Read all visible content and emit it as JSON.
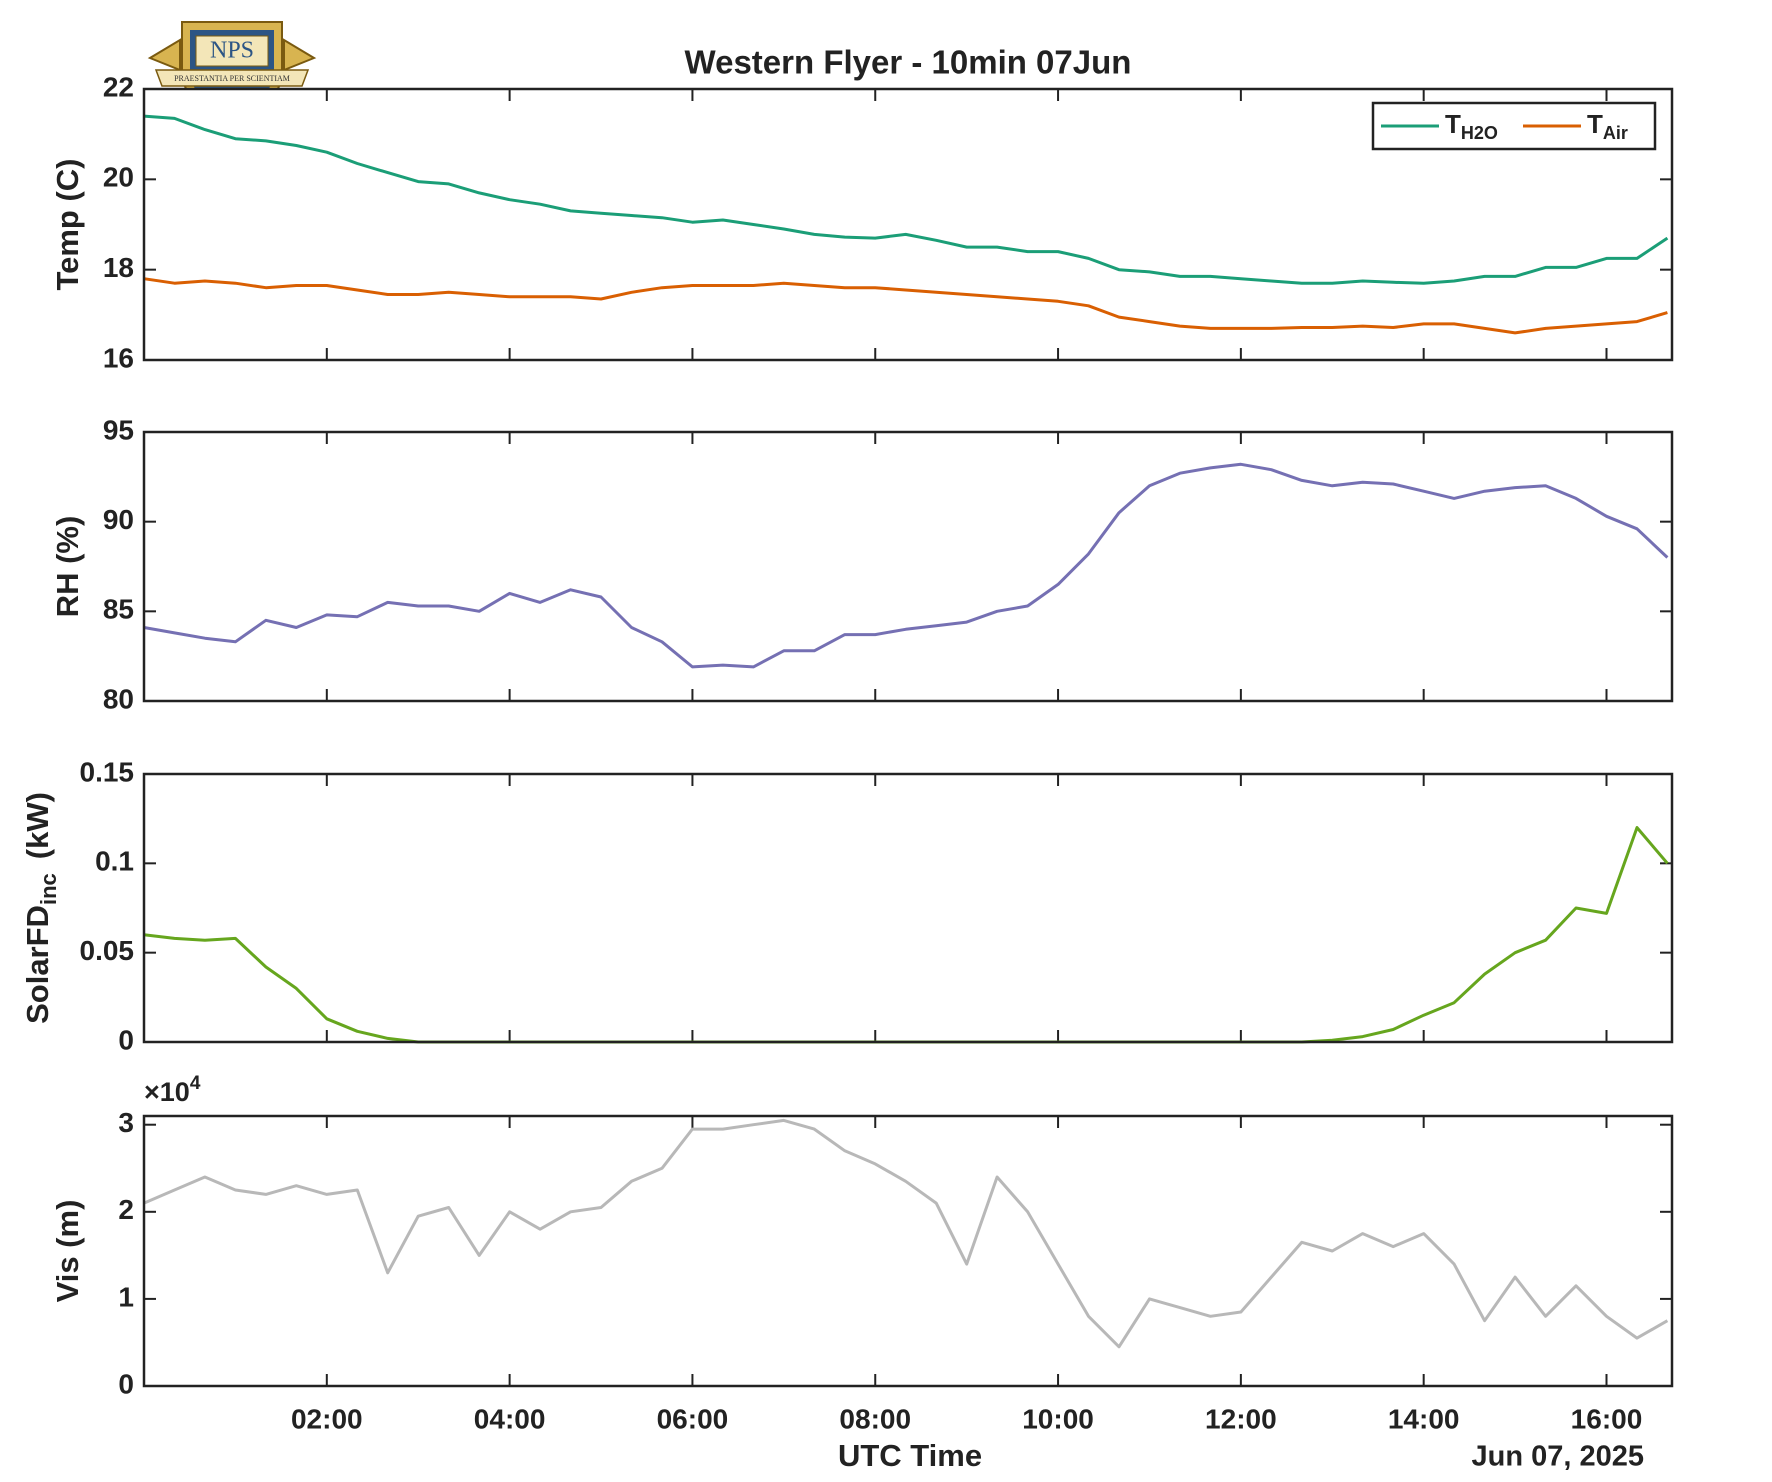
{
  "logo": {
    "text": "NPS",
    "motto": "PRAESTANTIA PER SCIENTIAM"
  },
  "chart_data": [
    {
      "type": "line",
      "title": "Western Flyer - 10min 07Jun",
      "ylabel": "Temp (C)",
      "legend": "upper right",
      "x": [
        "00:00",
        "00:20",
        "00:40",
        "01:00",
        "01:20",
        "01:40",
        "02:00",
        "02:20",
        "02:40",
        "03:00",
        "03:20",
        "03:40",
        "04:00",
        "04:20",
        "04:40",
        "05:00",
        "05:20",
        "05:40",
        "06:00",
        "06:20",
        "06:40",
        "07:00",
        "07:20",
        "07:40",
        "08:00",
        "08:20",
        "08:40",
        "09:00",
        "09:20",
        "09:40",
        "10:00",
        "10:20",
        "10:40",
        "11:00",
        "11:20",
        "11:40",
        "12:00",
        "12:20",
        "12:40",
        "13:00",
        "13:20",
        "13:40",
        "14:00",
        "14:20",
        "14:40",
        "15:00",
        "15:20",
        "15:40",
        "16:00",
        "16:20",
        "16:40"
      ],
      "xlim": [
        "00:00",
        "16:43"
      ],
      "ylim": [
        16,
        22
      ],
      "yticks": [
        16,
        18,
        20,
        22
      ],
      "series": [
        {
          "name": "T",
          "name_subscript": "H2O",
          "color": "#1b9e77",
          "values": [
            21.4,
            21.35,
            21.1,
            20.9,
            20.85,
            20.75,
            20.6,
            20.35,
            20.15,
            19.95,
            19.9,
            19.7,
            19.55,
            19.45,
            19.3,
            19.25,
            19.2,
            19.15,
            19.05,
            19.1,
            19.0,
            18.9,
            18.78,
            18.72,
            18.7,
            18.78,
            18.65,
            18.5,
            18.5,
            18.4,
            18.4,
            18.25,
            18.0,
            17.95,
            17.85,
            17.85,
            17.8,
            17.75,
            17.7,
            17.7,
            17.75,
            17.72,
            17.7,
            17.75,
            17.85,
            17.85,
            18.05,
            18.05,
            18.25,
            18.25,
            18.7
          ]
        },
        {
          "name": "T",
          "name_subscript": "Air",
          "color": "#d95f02",
          "values": [
            17.8,
            17.7,
            17.75,
            17.7,
            17.6,
            17.65,
            17.65,
            17.55,
            17.45,
            17.45,
            17.5,
            17.45,
            17.4,
            17.4,
            17.4,
            17.35,
            17.5,
            17.6,
            17.65,
            17.65,
            17.65,
            17.7,
            17.65,
            17.6,
            17.6,
            17.55,
            17.5,
            17.45,
            17.4,
            17.35,
            17.3,
            17.2,
            16.95,
            16.85,
            16.75,
            16.7,
            16.7,
            16.7,
            16.72,
            16.72,
            16.75,
            16.72,
            16.8,
            16.8,
            16.7,
            16.6,
            16.7,
            16.75,
            16.8,
            16.85,
            17.05
          ]
        }
      ]
    },
    {
      "type": "line",
      "ylabel": "RH (%)",
      "x": [
        "00:00",
        "00:20",
        "00:40",
        "01:00",
        "01:20",
        "01:40",
        "02:00",
        "02:20",
        "02:40",
        "03:00",
        "03:20",
        "03:40",
        "04:00",
        "04:20",
        "04:40",
        "05:00",
        "05:20",
        "05:40",
        "06:00",
        "06:20",
        "06:40",
        "07:00",
        "07:20",
        "07:40",
        "08:00",
        "08:20",
        "08:40",
        "09:00",
        "09:20",
        "09:40",
        "10:00",
        "10:20",
        "10:40",
        "11:00",
        "11:20",
        "11:40",
        "12:00",
        "12:20",
        "12:40",
        "13:00",
        "13:20",
        "13:40",
        "14:00",
        "14:20",
        "14:40",
        "15:00",
        "15:20",
        "15:40",
        "16:00",
        "16:20",
        "16:40"
      ],
      "xlim": [
        "00:00",
        "16:43"
      ],
      "ylim": [
        80,
        95
      ],
      "yticks": [
        80,
        85,
        90,
        95
      ],
      "series": [
        {
          "color": "#7570b3",
          "values": [
            84.1,
            83.8,
            83.5,
            83.3,
            84.5,
            84.1,
            84.8,
            84.7,
            85.5,
            85.3,
            85.3,
            85.0,
            86.0,
            85.5,
            86.2,
            85.8,
            84.1,
            83.3,
            81.9,
            82.0,
            81.9,
            82.8,
            82.8,
            83.7,
            83.7,
            84.0,
            84.2,
            84.4,
            85.0,
            85.3,
            86.5,
            88.2,
            90.5,
            92.0,
            92.7,
            93.0,
            93.2,
            92.9,
            92.3,
            92.0,
            92.2,
            92.1,
            91.7,
            91.3,
            91.7,
            91.9,
            92.0,
            91.3,
            90.3,
            89.6,
            88.0
          ]
        }
      ]
    },
    {
      "type": "line",
      "ylabel": "SolarFD",
      "ylabel_subscript": "inc",
      "ylabel_suffix": "(kW)",
      "x": [
        "00:00",
        "00:20",
        "00:40",
        "01:00",
        "01:20",
        "01:40",
        "02:00",
        "02:20",
        "02:40",
        "03:00",
        "03:20",
        "03:40",
        "04:00",
        "04:20",
        "04:40",
        "05:00",
        "05:20",
        "05:40",
        "06:00",
        "06:20",
        "06:40",
        "07:00",
        "07:20",
        "07:40",
        "08:00",
        "08:20",
        "08:40",
        "09:00",
        "09:20",
        "09:40",
        "10:00",
        "10:20",
        "10:40",
        "11:00",
        "11:20",
        "11:40",
        "12:00",
        "12:20",
        "12:40",
        "13:00",
        "13:20",
        "13:40",
        "14:00",
        "14:20",
        "14:40",
        "15:00",
        "15:20",
        "15:40",
        "16:00",
        "16:20",
        "16:40"
      ],
      "xlim": [
        "00:00",
        "16:43"
      ],
      "ylim": [
        0,
        0.15
      ],
      "yticks": [
        0,
        0.05,
        0.1,
        0.15
      ],
      "series": [
        {
          "color": "#66a61e",
          "values": [
            0.06,
            0.058,
            0.057,
            0.058,
            0.042,
            0.03,
            0.013,
            0.006,
            0.002,
            0,
            0,
            0,
            0,
            0,
            0,
            0,
            0,
            0,
            0,
            0,
            0,
            0,
            0,
            0,
            0,
            0,
            0,
            0,
            0,
            0,
            0,
            0,
            0,
            0,
            0,
            0,
            0,
            0,
            0,
            0.001,
            0.003,
            0.007,
            0.015,
            0.022,
            0.038,
            0.05,
            0.057,
            0.075,
            0.072,
            0.12,
            0.1
          ]
        }
      ]
    },
    {
      "type": "line",
      "ylabel": "Vis (m)",
      "y_exponent_base": "×10",
      "y_exponent": "4",
      "xlabel": "UTC Time",
      "date_label": "Jun 07, 2025",
      "x": [
        "00:00",
        "00:20",
        "00:40",
        "01:00",
        "01:20",
        "01:40",
        "02:00",
        "02:20",
        "02:40",
        "03:00",
        "03:20",
        "03:40",
        "04:00",
        "04:20",
        "04:40",
        "05:00",
        "05:20",
        "05:40",
        "06:00",
        "06:20",
        "06:40",
        "07:00",
        "07:20",
        "07:40",
        "08:00",
        "08:20",
        "08:40",
        "09:00",
        "09:20",
        "09:40",
        "10:00",
        "10:20",
        "10:40",
        "11:00",
        "11:20",
        "11:40",
        "12:00",
        "12:20",
        "12:40",
        "13:00",
        "13:20",
        "13:40",
        "14:00",
        "14:20",
        "14:40",
        "15:00",
        "15:20",
        "15:40",
        "16:00",
        "16:20",
        "16:40"
      ],
      "xlim": [
        "00:00",
        "16:43"
      ],
      "xticks": [
        "02:00",
        "04:00",
        "06:00",
        "08:00",
        "10:00",
        "12:00",
        "14:00",
        "16:00"
      ],
      "ylim": [
        0,
        31000
      ],
      "yticks": [
        {
          "value": 0,
          "label": "0"
        },
        {
          "value": 10000,
          "label": "1"
        },
        {
          "value": 20000,
          "label": "2"
        },
        {
          "value": 30000,
          "label": "3"
        }
      ],
      "series": [
        {
          "color": "#b8b8b8",
          "values": [
            21000,
            22500,
            24000,
            22500,
            22000,
            23000,
            22000,
            22500,
            13000,
            19500,
            20500,
            15000,
            20000,
            18000,
            20000,
            20500,
            23500,
            25000,
            29500,
            29500,
            30000,
            30500,
            29500,
            27000,
            25500,
            23500,
            21000,
            14000,
            24000,
            20000,
            14000,
            8000,
            4500,
            10000,
            9000,
            8000,
            8500,
            12500,
            16500,
            15500,
            17500,
            16000,
            17500,
            14000,
            7500,
            12500,
            8000,
            11500,
            8000,
            5500,
            7500
          ]
        }
      ]
    }
  ]
}
